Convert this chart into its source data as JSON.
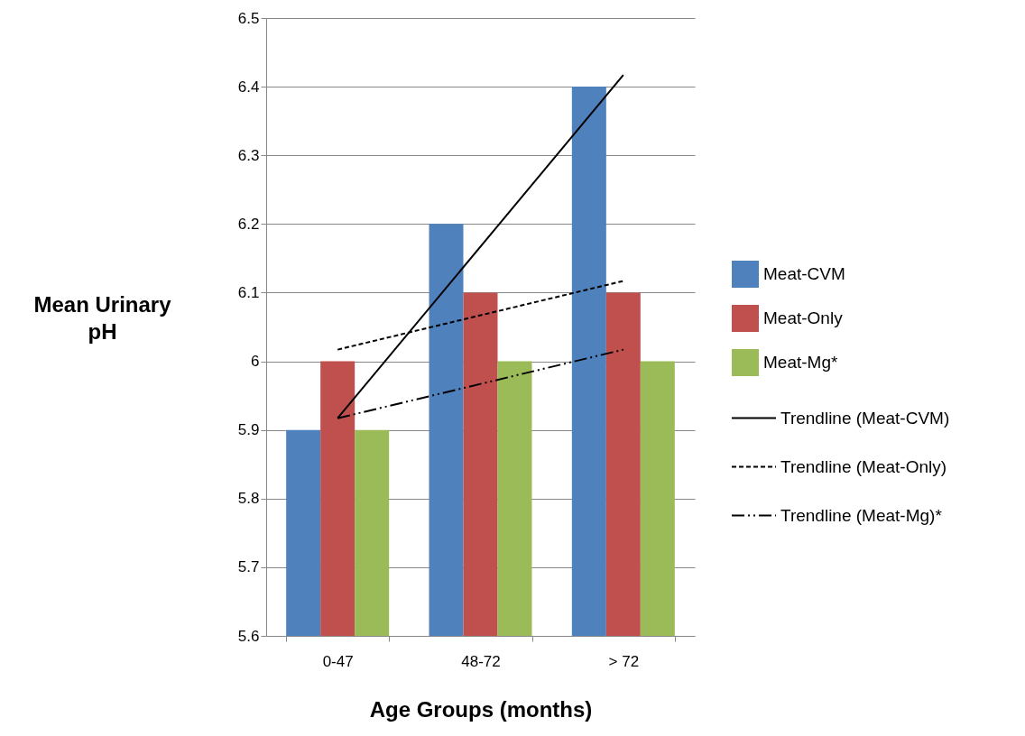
{
  "chart_data": {
    "type": "bar",
    "xlabel": "Age Groups (months)",
    "ylabel": "Mean Urinary pH",
    "categories": [
      "0-47",
      "48-72",
      "> 72"
    ],
    "series": [
      {
        "name": "Meat-CVM",
        "color": "#4f81bd",
        "values": [
          5.9,
          6.2,
          6.4
        ]
      },
      {
        "name": "Meat-Only",
        "color": "#c0504d",
        "values": [
          6.0,
          6.1,
          6.1
        ]
      },
      {
        "name": "Meat-Mg*",
        "color": "#9bbb59",
        "values": [
          5.9,
          6.0,
          6.0
        ]
      },
      {
        "name": "Trendline (Meat-CVM)",
        "type": "line",
        "color": "#000000",
        "line_style": "solid",
        "x": [
          "0-47",
          "> 72"
        ],
        "values": [
          5.917,
          6.417
        ]
      },
      {
        "name": "Trendline (Meat-Only)",
        "type": "line",
        "color": "#000000",
        "line_style": "dashed",
        "x": [
          "0-47",
          "> 72"
        ],
        "values": [
          6.017,
          6.117
        ]
      },
      {
        "name": "Trendline (Meat-Mg)*",
        "type": "line",
        "color": "#000000",
        "line_style": "dotted",
        "x": [
          "0-47",
          "> 72"
        ],
        "values": [
          5.917,
          6.017
        ]
      }
    ],
    "ylim": [
      5.6,
      6.5
    ],
    "yticks": [
      5.6,
      5.7,
      5.8,
      5.9,
      6,
      6.1,
      6.2,
      6.3,
      6.4,
      6.5
    ],
    "grid": "y",
    "legend": "right",
    "marker": "none"
  }
}
